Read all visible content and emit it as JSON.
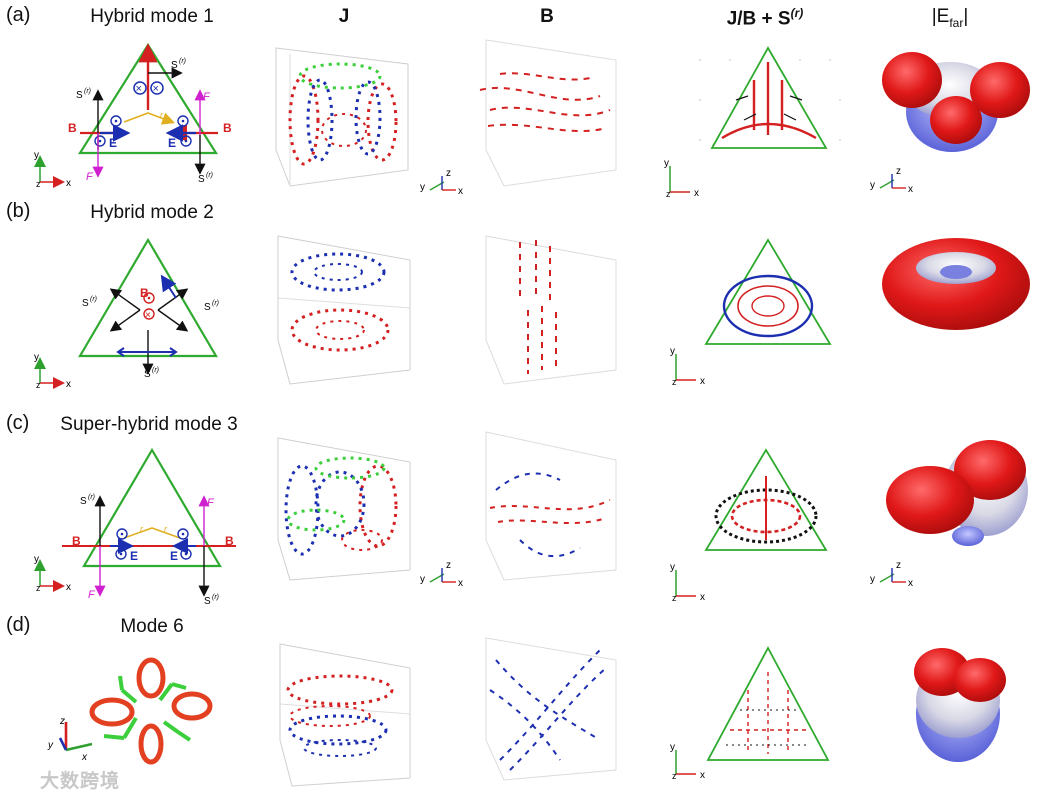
{
  "column_headers": {
    "j": "J",
    "b": "B",
    "jb_s": "J/B + S",
    "jb_s_sup": "(r)",
    "efar": "|E",
    "efar_sub": "far",
    "efar_end": "|"
  },
  "rows": [
    {
      "label": "(a)",
      "title": "Hybrid mode 1"
    },
    {
      "label": "(b)",
      "title": "Hybrid mode 2"
    },
    {
      "label": "(c)",
      "title": "Super-hybrid mode 3"
    },
    {
      "label": "(d)",
      "title": "Mode 6"
    }
  ],
  "schematic_labels": {
    "B": "B",
    "E": "E",
    "F": "F",
    "S": "S",
    "S_sup": "(r)",
    "r": "r",
    "x": "x",
    "y": "y",
    "z": "z"
  },
  "colors": {
    "triangle": "#2eaa2e",
    "current_red": "#d42020",
    "current_blue": "#1c2fb0",
    "current_green": "#3ccf3c",
    "force": "#d020d0",
    "poynting": "#111111",
    "r_arrow": "#e0b020",
    "lobe_red": "#e01818",
    "lobe_blue": "#6a70e0"
  },
  "watermark": "大数跨境"
}
